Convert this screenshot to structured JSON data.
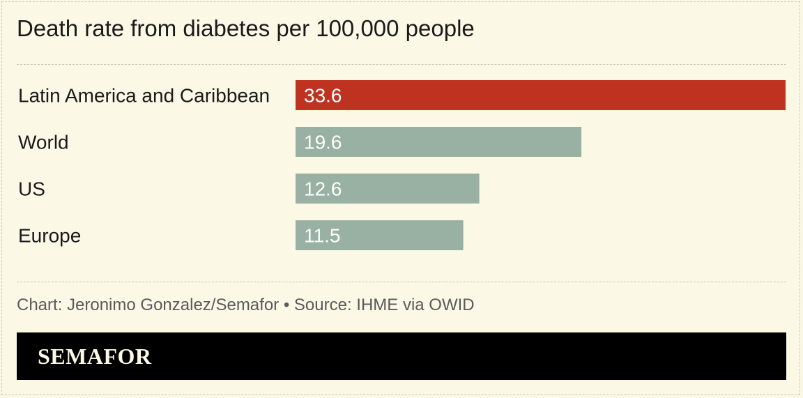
{
  "title": "Death rate from diabetes per 100,000 people",
  "chart_data": {
    "type": "bar",
    "orientation": "horizontal",
    "title": "Death rate from diabetes per 100,000 people",
    "categories": [
      "Latin America and Caribbean",
      "World",
      "US",
      "Europe"
    ],
    "values": [
      33.6,
      19.6,
      12.6,
      11.5
    ],
    "value_labels": [
      "33.6",
      "19.6",
      "12.6",
      "11.5"
    ],
    "colors": [
      "#bf3220",
      "#98b1a3",
      "#98b1a3",
      "#98b1a3"
    ],
    "xlim": [
      0,
      33.6
    ],
    "grid": false,
    "legend": "none"
  },
  "source": "Chart: Jeronimo Gonzalez/Semafor • Source: IHME via OWID",
  "brand": "SEMAFOR"
}
